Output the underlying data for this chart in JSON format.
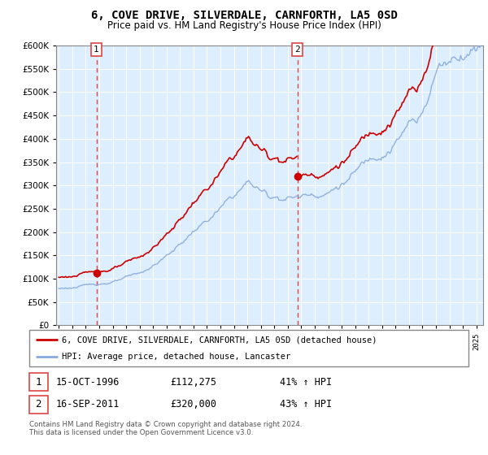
{
  "title": "6, COVE DRIVE, SILVERDALE, CARNFORTH, LA5 0SD",
  "subtitle": "Price paid vs. HM Land Registry's House Price Index (HPI)",
  "sale1_date": "15-OCT-1996",
  "sale1_price": 112275,
  "sale1_label": "41% ↑ HPI",
  "sale2_date": "16-SEP-2011",
  "sale2_price": 320000,
  "sale2_label": "43% ↑ HPI",
  "legend_line1": "6, COVE DRIVE, SILVERDALE, CARNFORTH, LA5 0SD (detached house)",
  "legend_line2": "HPI: Average price, detached house, Lancaster",
  "footnote": "Contains HM Land Registry data © Crown copyright and database right 2024.\nThis data is licensed under the Open Government Licence v3.0.",
  "sale_color": "#cc0000",
  "hpi_color": "#88aadd",
  "vline_color": "#dd4444",
  "bg_color": "#ddeeff",
  "grid_color": "#aabbcc",
  "ylim": [
    0,
    600000
  ],
  "yticks": [
    0,
    50000,
    100000,
    150000,
    200000,
    250000,
    300000,
    350000,
    400000,
    450000,
    500000,
    550000,
    600000
  ],
  "sale1_x": 1996.79,
  "sale2_x": 2011.71,
  "xmin": 1994.0,
  "xmax": 2025.5
}
